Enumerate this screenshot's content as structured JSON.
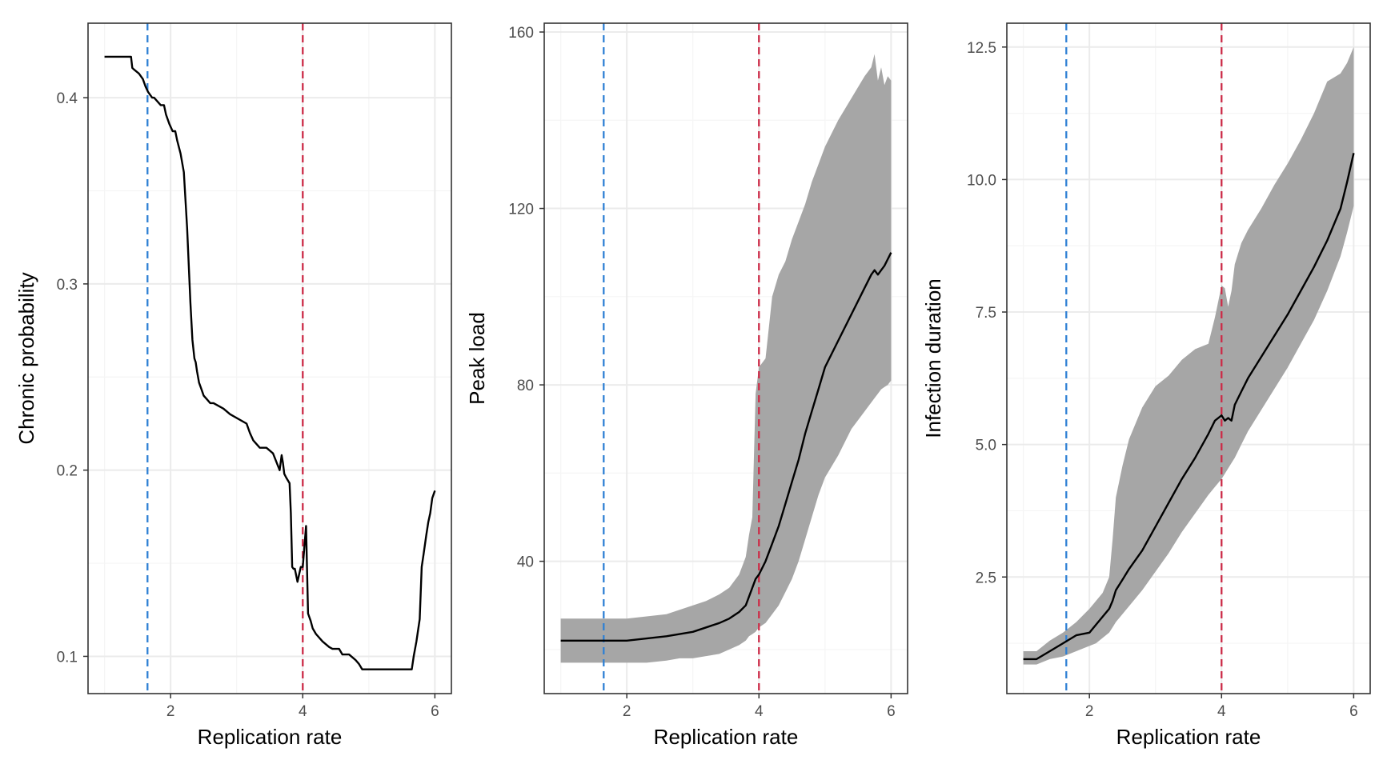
{
  "colors": {
    "grid_major": "#ebebeb",
    "grid_minor": "#f5f5f5",
    "panel_border": "#333333",
    "ribbon": "#a6a6a6",
    "line": "#000000",
    "vline_blue": "#2f80d4",
    "vline_red": "#cc2b47"
  },
  "chart_data": [
    {
      "type": "line",
      "xlabel": "Replication rate",
      "ylabel": "Chronic probability",
      "xlim": [
        0.75,
        6.25
      ],
      "ylim": [
        0.08,
        0.44
      ],
      "x_ticks": [
        2,
        4,
        6
      ],
      "x_tick_labels": [
        "2",
        "4",
        "6"
      ],
      "y_ticks": [
        0.1,
        0.2,
        0.3,
        0.4
      ],
      "y_tick_labels": [
        "0.1",
        "0.2",
        "0.3",
        "0.4"
      ],
      "vlines": [
        {
          "x": 1.65,
          "color": "blue",
          "style": "dashed"
        },
        {
          "x": 4.0,
          "color": "red",
          "style": "dashed"
        }
      ],
      "series": [
        {
          "x": [
            1.0,
            1.4,
            1.42,
            1.45,
            1.52,
            1.58,
            1.62,
            1.66,
            1.72,
            1.75,
            1.85,
            1.9,
            1.93,
            1.98,
            2.03,
            2.07,
            2.1,
            2.15,
            2.2,
            2.25,
            2.3,
            2.33,
            2.36,
            2.38,
            2.4,
            2.43,
            2.46,
            2.5,
            2.55,
            2.6,
            2.65,
            2.8,
            2.9,
            3.15,
            3.2,
            3.25,
            3.3,
            3.35,
            3.45,
            3.55,
            3.65,
            3.68,
            3.7,
            3.72,
            3.75,
            3.8,
            3.82,
            3.84,
            3.86,
            3.88,
            3.92,
            3.97,
            4.0,
            4.05,
            4.08,
            4.12,
            4.15,
            4.2,
            4.3,
            4.4,
            4.45,
            4.55,
            4.6,
            4.7,
            4.8,
            4.85,
            4.9,
            4.95,
            5.0,
            5.2,
            5.5,
            5.65,
            5.68,
            5.72,
            5.77,
            5.8,
            5.83,
            5.87,
            5.9,
            5.93,
            5.96,
            6.0
          ],
          "y": [
            0.422,
            0.422,
            0.416,
            0.415,
            0.413,
            0.41,
            0.406,
            0.403,
            0.4,
            0.4,
            0.396,
            0.396,
            0.391,
            0.386,
            0.382,
            0.382,
            0.377,
            0.37,
            0.36,
            0.33,
            0.29,
            0.27,
            0.26,
            0.258,
            0.253,
            0.247,
            0.244,
            0.24,
            0.238,
            0.236,
            0.236,
            0.233,
            0.23,
            0.225,
            0.22,
            0.216,
            0.214,
            0.212,
            0.212,
            0.209,
            0.2,
            0.208,
            0.204,
            0.198,
            0.196,
            0.193,
            0.177,
            0.148,
            0.147,
            0.147,
            0.14,
            0.148,
            0.148,
            0.17,
            0.123,
            0.119,
            0.115,
            0.112,
            0.108,
            0.105,
            0.104,
            0.104,
            0.101,
            0.101,
            0.098,
            0.096,
            0.093,
            0.093,
            0.093,
            0.093,
            0.093,
            0.093,
            0.1,
            0.108,
            0.12,
            0.148,
            0.155,
            0.165,
            0.172,
            0.177,
            0.185,
            0.189
          ]
        }
      ]
    },
    {
      "type": "area",
      "xlabel": "Replication rate",
      "ylabel": "Peak load",
      "xlim": [
        0.75,
        6.25
      ],
      "ylim": [
        10,
        162
      ],
      "x_ticks": [
        2,
        4,
        6
      ],
      "x_tick_labels": [
        "2",
        "4",
        "6"
      ],
      "y_ticks": [
        40,
        80,
        120,
        160
      ],
      "y_tick_labels": [
        "40",
        "80",
        "120",
        "160"
      ],
      "vlines": [
        {
          "x": 1.65,
          "color": "blue",
          "style": "dashed"
        },
        {
          "x": 4.0,
          "color": "red",
          "style": "dashed"
        }
      ],
      "series": [
        {
          "x": [
            1.0,
            1.5,
            2.0,
            2.3,
            2.6,
            2.8,
            3.0,
            3.2,
            3.4,
            3.55,
            3.7,
            3.8,
            3.85,
            3.9,
            3.95,
            4.0,
            4.1,
            4.2,
            4.3,
            4.4,
            4.5,
            4.6,
            4.7,
            4.8,
            4.9,
            5.0,
            5.2,
            5.4,
            5.6,
            5.7,
            5.75,
            5.8,
            5.85,
            5.9,
            5.95,
            6.0
          ],
          "y": [
            22,
            22,
            22,
            22.5,
            23,
            23.5,
            24,
            25,
            26,
            27,
            28.5,
            30,
            32,
            34,
            36,
            37,
            40,
            44,
            48,
            53,
            58,
            63,
            69,
            74,
            79,
            84,
            90,
            96,
            102,
            105,
            106,
            105,
            106,
            107,
            108.5,
            110
          ],
          "lower": [
            17,
            17,
            17,
            17,
            17.5,
            18,
            18,
            18.5,
            19,
            20,
            21,
            22,
            23,
            23.5,
            24,
            25,
            26,
            28,
            30,
            33,
            36,
            40,
            45,
            50,
            55,
            59,
            64,
            70,
            74,
            76,
            77,
            78,
            79,
            79.5,
            80,
            81
          ],
          "upper": [
            27,
            27,
            27,
            27.5,
            28,
            29,
            30,
            31,
            32.5,
            34,
            37,
            41,
            46,
            50,
            78,
            84,
            86,
            100,
            105,
            108,
            113,
            117,
            121,
            126,
            130,
            134,
            140,
            145,
            150,
            152,
            155,
            149,
            152,
            148,
            150,
            149
          ]
        }
      ]
    },
    {
      "type": "area",
      "xlabel": "Replication rate",
      "ylabel": "Infection duration",
      "xlim": [
        0.75,
        6.25
      ],
      "ylim": [
        0.3,
        12.95
      ],
      "x_ticks": [
        2,
        4,
        6
      ],
      "x_tick_labels": [
        "2",
        "4",
        "6"
      ],
      "y_ticks": [
        2.5,
        5.0,
        7.5,
        10.0,
        12.5
      ],
      "y_tick_labels": [
        "2.5",
        "5.0",
        "7.5",
        "10.0",
        "12.5"
      ],
      "vlines": [
        {
          "x": 1.65,
          "color": "blue",
          "style": "dashed"
        },
        {
          "x": 4.0,
          "color": "red",
          "style": "dashed"
        }
      ],
      "series": [
        {
          "x": [
            1.0,
            1.2,
            1.4,
            1.6,
            1.8,
            2.0,
            2.1,
            2.2,
            2.3,
            2.35,
            2.4,
            2.5,
            2.6,
            2.8,
            3.0,
            3.2,
            3.4,
            3.6,
            3.8,
            3.9,
            4.0,
            4.05,
            4.1,
            4.15,
            4.2,
            4.3,
            4.4,
            4.6,
            4.8,
            5.0,
            5.2,
            5.4,
            5.6,
            5.8,
            5.9,
            6.0
          ],
          "y": [
            0.95,
            0.95,
            1.1,
            1.25,
            1.4,
            1.45,
            1.6,
            1.75,
            1.9,
            2.05,
            2.25,
            2.45,
            2.65,
            3.0,
            3.45,
            3.9,
            4.35,
            4.75,
            5.2,
            5.45,
            5.55,
            5.45,
            5.5,
            5.45,
            5.75,
            6.0,
            6.25,
            6.65,
            7.05,
            7.45,
            7.9,
            8.35,
            8.85,
            9.45,
            9.95,
            10.5
          ],
          "lower": [
            0.85,
            0.85,
            0.95,
            1.0,
            1.1,
            1.2,
            1.25,
            1.35,
            1.45,
            1.55,
            1.65,
            1.8,
            1.95,
            2.25,
            2.6,
            2.95,
            3.35,
            3.7,
            4.05,
            4.2,
            4.35,
            4.45,
            4.55,
            4.65,
            4.75,
            5.0,
            5.25,
            5.65,
            6.05,
            6.45,
            6.9,
            7.35,
            7.9,
            8.55,
            9.0,
            9.5
          ],
          "upper": [
            1.1,
            1.1,
            1.3,
            1.45,
            1.65,
            1.9,
            2.05,
            2.2,
            2.5,
            3.2,
            4.0,
            4.6,
            5.1,
            5.7,
            6.1,
            6.3,
            6.6,
            6.8,
            6.9,
            7.4,
            8.0,
            7.95,
            7.6,
            7.9,
            8.4,
            8.8,
            9.05,
            9.45,
            9.9,
            10.3,
            10.75,
            11.25,
            11.85,
            12.0,
            12.2,
            12.5
          ]
        }
      ]
    }
  ]
}
